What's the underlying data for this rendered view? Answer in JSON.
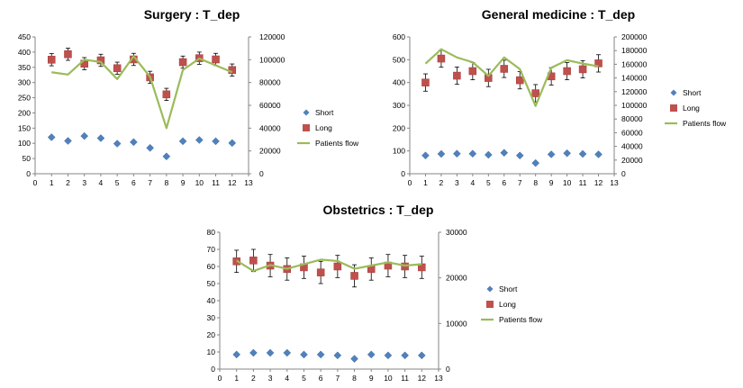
{
  "chart_data": [
    {
      "type": "scatter",
      "title": "Surgery : T_dep",
      "xlabel": "",
      "ylabel": "",
      "x": [
        1,
        2,
        3,
        4,
        5,
        6,
        7,
        8,
        9,
        10,
        11,
        12
      ],
      "xlim": [
        0,
        13
      ],
      "xticks": [
        "0",
        "1",
        "2",
        "3",
        "4",
        "5",
        "6",
        "7",
        "8",
        "9",
        "10",
        "11",
        "12",
        "13"
      ],
      "ylim": [
        0,
        450
      ],
      "yticks": [
        "0",
        "50",
        "100",
        "150",
        "200",
        "250",
        "300",
        "350",
        "400",
        "450"
      ],
      "y2lim": [
        0,
        120000
      ],
      "y2ticks": [
        "0",
        "20000",
        "40000",
        "60000",
        "80000",
        "100000",
        "120000"
      ],
      "series": [
        {
          "name": "Short",
          "axis": "left",
          "marker": "diamond",
          "color": "#4F81BD",
          "values": [
            120,
            108,
            124,
            117,
            99,
            104,
            85,
            57,
            107,
            111,
            107,
            101
          ],
          "err": [
            0,
            0,
            0,
            0,
            0,
            0,
            0,
            0,
            0,
            0,
            0,
            0
          ]
        },
        {
          "name": "Long",
          "axis": "left",
          "marker": "square",
          "color": "#C0504D",
          "values": [
            375,
            393,
            362,
            373,
            347,
            376,
            317,
            261,
            367,
            380,
            376,
            341
          ],
          "err": [
            20,
            20,
            20,
            20,
            20,
            20,
            20,
            20,
            20,
            20,
            20,
            20
          ]
        },
        {
          "name": "Patients flow",
          "axis": "right",
          "marker": "line",
          "color": "#9BBB59",
          "values": [
            89000,
            87000,
            100000,
            98000,
            83000,
            103000,
            85000,
            40000,
            91000,
            101000,
            95000,
            89000
          ]
        }
      ]
    },
    {
      "type": "scatter",
      "title": "General medicine : T_dep",
      "xlabel": "",
      "ylabel": "",
      "x": [
        1,
        2,
        3,
        4,
        5,
        6,
        7,
        8,
        9,
        10,
        11,
        12
      ],
      "xlim": [
        0,
        13
      ],
      "xticks": [
        "0",
        "1",
        "2",
        "3",
        "4",
        "5",
        "6",
        "7",
        "8",
        "9",
        "10",
        "11",
        "12",
        "13"
      ],
      "ylim": [
        0,
        600
      ],
      "yticks": [
        "0",
        "100",
        "200",
        "300",
        "400",
        "500",
        "600"
      ],
      "y2lim": [
        0,
        200000
      ],
      "y2ticks": [
        "0",
        "20000",
        "40000",
        "60000",
        "80000",
        "100000",
        "120000",
        "140000",
        "160000",
        "180000",
        "200000"
      ],
      "series": [
        {
          "name": "Short",
          "axis": "left",
          "marker": "diamond",
          "color": "#4F81BD",
          "values": [
            80,
            87,
            88,
            88,
            83,
            92,
            80,
            47,
            85,
            90,
            87,
            85
          ],
          "err": [
            0,
            0,
            0,
            0,
            0,
            0,
            0,
            0,
            0,
            0,
            0,
            0
          ]
        },
        {
          "name": "Long",
          "axis": "left",
          "marker": "square",
          "color": "#C0504D",
          "values": [
            400,
            505,
            430,
            450,
            420,
            460,
            410,
            353,
            427,
            450,
            458,
            484
          ],
          "err": [
            38,
            38,
            38,
            38,
            38,
            38,
            38,
            38,
            38,
            38,
            38,
            38
          ]
        },
        {
          "name": "Patients flow",
          "axis": "right",
          "marker": "line",
          "color": "#9BBB59",
          "values": [
            161000,
            182000,
            170000,
            163000,
            143000,
            170000,
            153000,
            99000,
            155000,
            166000,
            161000,
            157000
          ]
        }
      ]
    },
    {
      "type": "scatter",
      "title": "Obstetrics : T_dep",
      "xlabel": "",
      "ylabel": "",
      "x": [
        1,
        2,
        3,
        4,
        5,
        6,
        7,
        8,
        9,
        10,
        11,
        12
      ],
      "xlim": [
        0,
        13
      ],
      "xticks": [
        "0",
        "1",
        "2",
        "3",
        "4",
        "5",
        "6",
        "7",
        "8",
        "9",
        "10",
        "11",
        "12",
        "13"
      ],
      "ylim": [
        0,
        80
      ],
      "yticks": [
        "0",
        "10",
        "20",
        "30",
        "40",
        "50",
        "60",
        "70",
        "80"
      ],
      "y2lim": [
        0,
        30000
      ],
      "y2ticks": [
        "0",
        "10000",
        "20000",
        "30000"
      ],
      "series": [
        {
          "name": "Short",
          "axis": "left",
          "marker": "diamond",
          "color": "#4F81BD",
          "values": [
            8.5,
            9.5,
            9.5,
            9.5,
            8.5,
            8.5,
            8,
            6,
            8.5,
            8,
            8,
            8
          ],
          "err": [
            0,
            0,
            0,
            0,
            0,
            0,
            0,
            0,
            0,
            0,
            0,
            0
          ]
        },
        {
          "name": "Long",
          "axis": "left",
          "marker": "square",
          "color": "#C0504D",
          "values": [
            63,
            63.5,
            60.5,
            58.5,
            59.5,
            56.5,
            60,
            54.5,
            58.5,
            60.5,
            60,
            59.5
          ],
          "err": [
            6.5,
            6.5,
            6.5,
            6.5,
            6.5,
            6.5,
            6.5,
            6.5,
            6.5,
            6.5,
            6.5,
            6.5
          ]
        },
        {
          "name": "Patients flow",
          "axis": "right",
          "marker": "line",
          "color": "#9BBB59",
          "values": [
            23800,
            21500,
            22800,
            22000,
            23000,
            24000,
            23700,
            22000,
            22700,
            23400,
            22700,
            23000
          ]
        }
      ]
    }
  ]
}
